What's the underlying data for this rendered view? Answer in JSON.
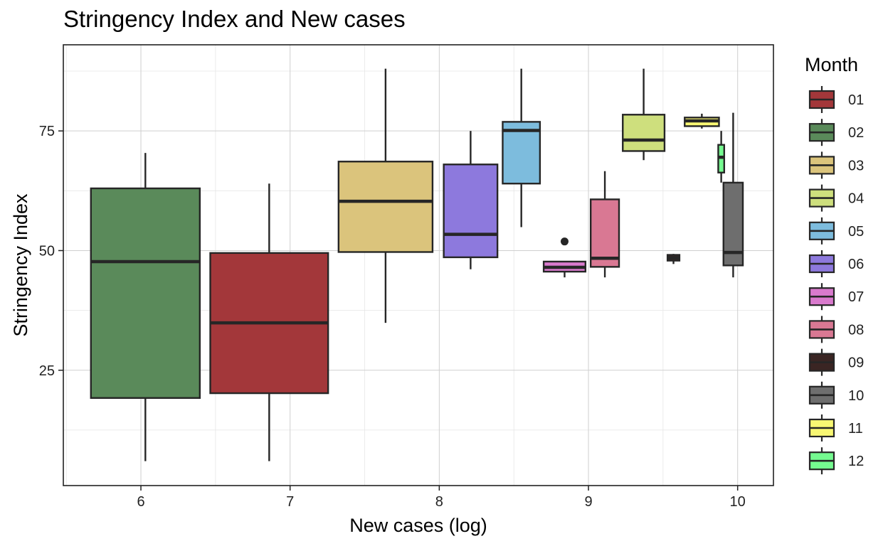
{
  "chart_data": {
    "type": "box",
    "title": "Stringency Index and New cases",
    "xlabel": "New cases (log)",
    "ylabel": "Stringency Index",
    "xlim": [
      5.48,
      10.24
    ],
    "ylim": [
      0.9,
      93.0
    ],
    "x_ticks": [
      6,
      7,
      8,
      9,
      10
    ],
    "y_ticks": [
      25,
      50,
      75
    ],
    "x_tick_labels": [
      "6",
      "7",
      "8",
      "9",
      "10"
    ],
    "y_tick_labels": [
      "25",
      "50",
      "75"
    ],
    "grid": true,
    "legend": {
      "title": "Month",
      "position": "right"
    },
    "series": [
      {
        "name": "01",
        "color": "#A3373A",
        "x_center": 6.86,
        "x_width": 0.79,
        "whisker_low": 6.0,
        "q1": 20.2,
        "median": 34.9,
        "q3": 49.5,
        "whisker_high": 64.0,
        "outliers": []
      },
      {
        "name": "02",
        "color": "#5A8A5A",
        "x_center": 6.03,
        "x_width": 0.73,
        "whisker_low": 6.0,
        "q1": 19.2,
        "median": 47.7,
        "q3": 63.0,
        "whisker_high": 70.4,
        "outliers": []
      },
      {
        "name": "03",
        "color": "#DBC47C",
        "x_center": 7.64,
        "x_width": 0.63,
        "whisker_low": 34.9,
        "q1": 49.7,
        "median": 60.3,
        "q3": 68.6,
        "whisker_high": 88.0,
        "outliers": []
      },
      {
        "name": "04",
        "color": "#CEDF7D",
        "x_center": 9.37,
        "x_width": 0.28,
        "whisker_low": 68.9,
        "q1": 70.8,
        "median": 73.1,
        "q3": 78.4,
        "whisker_high": 88.0,
        "outliers": []
      },
      {
        "name": "05",
        "color": "#7DBCDD",
        "x_center": 8.55,
        "x_width": 0.25,
        "whisker_low": 54.9,
        "q1": 64.0,
        "median": 75.1,
        "q3": 76.9,
        "whisker_high": 88.0,
        "outliers": []
      },
      {
        "name": "06",
        "color": "#8D79DD",
        "x_center": 8.21,
        "x_width": 0.36,
        "whisker_low": 46.1,
        "q1": 48.6,
        "median": 53.4,
        "q3": 68.0,
        "whisker_high": 75.0,
        "outliers": []
      },
      {
        "name": "07",
        "color": "#D97ACD",
        "x_center": 8.84,
        "x_width": 0.28,
        "whisker_low": 44.4,
        "q1": 45.6,
        "median": 46.5,
        "q3": 47.7,
        "whisker_high": 47.7,
        "outliers": [
          51.9
        ]
      },
      {
        "name": "08",
        "color": "#D97893",
        "x_center": 9.11,
        "x_width": 0.19,
        "whisker_low": 44.4,
        "q1": 46.6,
        "median": 48.4,
        "q3": 60.7,
        "whisker_high": 66.6,
        "outliers": []
      },
      {
        "name": "09",
        "color": "#3A2523",
        "x_center": 9.57,
        "x_width": 0.08,
        "whisker_low": 47.2,
        "q1": 47.9,
        "median": 48.5,
        "q3": 49.1,
        "whisker_high": 49.3,
        "outliers": []
      },
      {
        "name": "10",
        "color": "#6E6E6E",
        "x_center": 9.97,
        "x_width": 0.13,
        "whisker_low": 44.4,
        "q1": 46.9,
        "median": 49.6,
        "q3": 64.2,
        "whisker_high": 78.8,
        "outliers": []
      },
      {
        "name": "11",
        "color": "#F8F773",
        "x_center": 9.76,
        "x_width": 0.23,
        "whisker_low": 75.5,
        "q1": 76.0,
        "median": 77.1,
        "q3": 77.8,
        "whisker_high": 78.6,
        "outliers": []
      },
      {
        "name": "12",
        "color": "#75FA90",
        "x_center": 9.89,
        "x_width": 0.04,
        "whisker_low": 64.2,
        "q1": 66.3,
        "median": 69.5,
        "q3": 72.1,
        "whisker_high": 75.0,
        "outliers": []
      }
    ]
  }
}
